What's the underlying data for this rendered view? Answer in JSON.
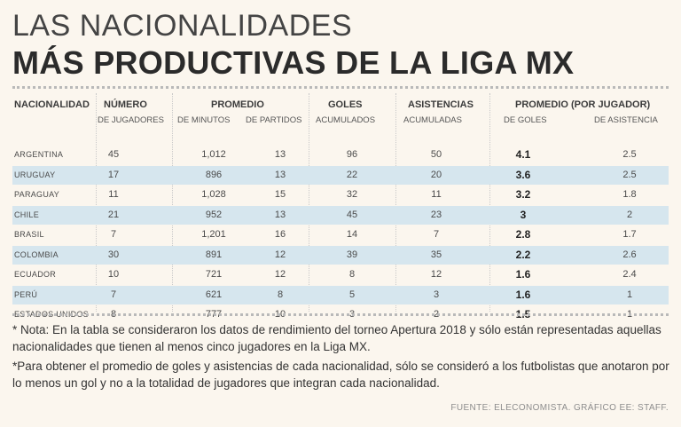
{
  "title_line1": "LAS NACIONALIDADES",
  "title_line2": "MÁS PRODUCTIVAS DE LA LIGA MX",
  "headers": {
    "nacionalidad": "NACIONALIDAD",
    "numero": "NÚMERO",
    "numero_sub": "DE JUGADORES",
    "promedio": "PROMEDIO",
    "promedio_minutos_sub": "DE MINUTOS",
    "promedio_partidos_sub": "DE PARTIDOS",
    "goles": "GOLES",
    "goles_sub": "ACUMULADOS",
    "asistencias": "ASISTENCIAS",
    "asistencias_sub": "ACUMULADAS",
    "promedio_jugador": "PROMEDIO (POR JUGADOR)",
    "prom_goles_sub": "DE GOLES",
    "prom_asist_sub": "DE ASISTENCIA"
  },
  "chart_data": {
    "type": "table",
    "title": "LAS NACIONALIDADES MÁS PRODUCTIVAS DE LA LIGA MX",
    "columns": [
      "NACIONALIDAD",
      "NÚMERO DE JUGADORES",
      "PROMEDIO DE MINUTOS",
      "PROMEDIO DE PARTIDOS",
      "GOLES ACUMULADOS",
      "ASISTENCIAS ACUMULADAS",
      "PROMEDIO (POR JUGADOR) DE GOLES",
      "PROMEDIO (POR JUGADOR) DE ASISTENCIA"
    ],
    "rows": [
      {
        "pais": "ARGENTINA",
        "jugadores": "45",
        "minutos": "1,012",
        "partidos": "13",
        "goles": "96",
        "asistencias": "50",
        "prom_goles": "4.1",
        "prom_asist": "2.5"
      },
      {
        "pais": "URUGUAY",
        "jugadores": "17",
        "minutos": "896",
        "partidos": "13",
        "goles": "22",
        "asistencias": "20",
        "prom_goles": "3.6",
        "prom_asist": "2.5"
      },
      {
        "pais": "PARAGUAY",
        "jugadores": "11",
        "minutos": "1,028",
        "partidos": "15",
        "goles": "32",
        "asistencias": "11",
        "prom_goles": "3.2",
        "prom_asist": "1.8"
      },
      {
        "pais": "CHILE",
        "jugadores": "21",
        "minutos": "952",
        "partidos": "13",
        "goles": "45",
        "asistencias": "23",
        "prom_goles": "3",
        "prom_asist": "2"
      },
      {
        "pais": "BRASIL",
        "jugadores": "7",
        "minutos": "1,201",
        "partidos": "16",
        "goles": "14",
        "asistencias": "7",
        "prom_goles": "2.8",
        "prom_asist": "1.7"
      },
      {
        "pais": "COLOMBIA",
        "jugadores": "30",
        "minutos": "891",
        "partidos": "12",
        "goles": "39",
        "asistencias": "35",
        "prom_goles": "2.2",
        "prom_asist": "2.6"
      },
      {
        "pais": "ECUADOR",
        "jugadores": "10",
        "minutos": "721",
        "partidos": "12",
        "goles": "8",
        "asistencias": "12",
        "prom_goles": "1.6",
        "prom_asist": "2.4"
      },
      {
        "pais": "PERÚ",
        "jugadores": "7",
        "minutos": "621",
        "partidos": "8",
        "goles": "5",
        "asistencias": "3",
        "prom_goles": "1.6",
        "prom_asist": "1"
      },
      {
        "pais": "ESTADOS UNIDOS",
        "jugadores": "8",
        "minutos": "777",
        "partidos": "10",
        "goles": "3",
        "asistencias": "2",
        "prom_goles": "1.5",
        "prom_asist": "1"
      }
    ]
  },
  "notes": {
    "note1": "* Nota: En la tabla se consideraron los datos de rendimiento del torneo Apertura 2018 y sólo están representadas aquellas nacionalidades que tienen al menos cinco jugadores en la Liga MX.",
    "note2": "*Para obtener el promedio de goles y asistencias de cada nacionalidad, sólo se consideró a los futbolistas que anotaron por lo menos un gol y no a la totalidad de jugadores que integran cada nacionalidad."
  },
  "source": "FUENTE: ELECONOMISTA. GRÁFICO EE: STAFF.",
  "colors": {
    "background": "#fbf6ee",
    "row_highlight": "#d6e6ee",
    "text": "#3c3c3c"
  }
}
